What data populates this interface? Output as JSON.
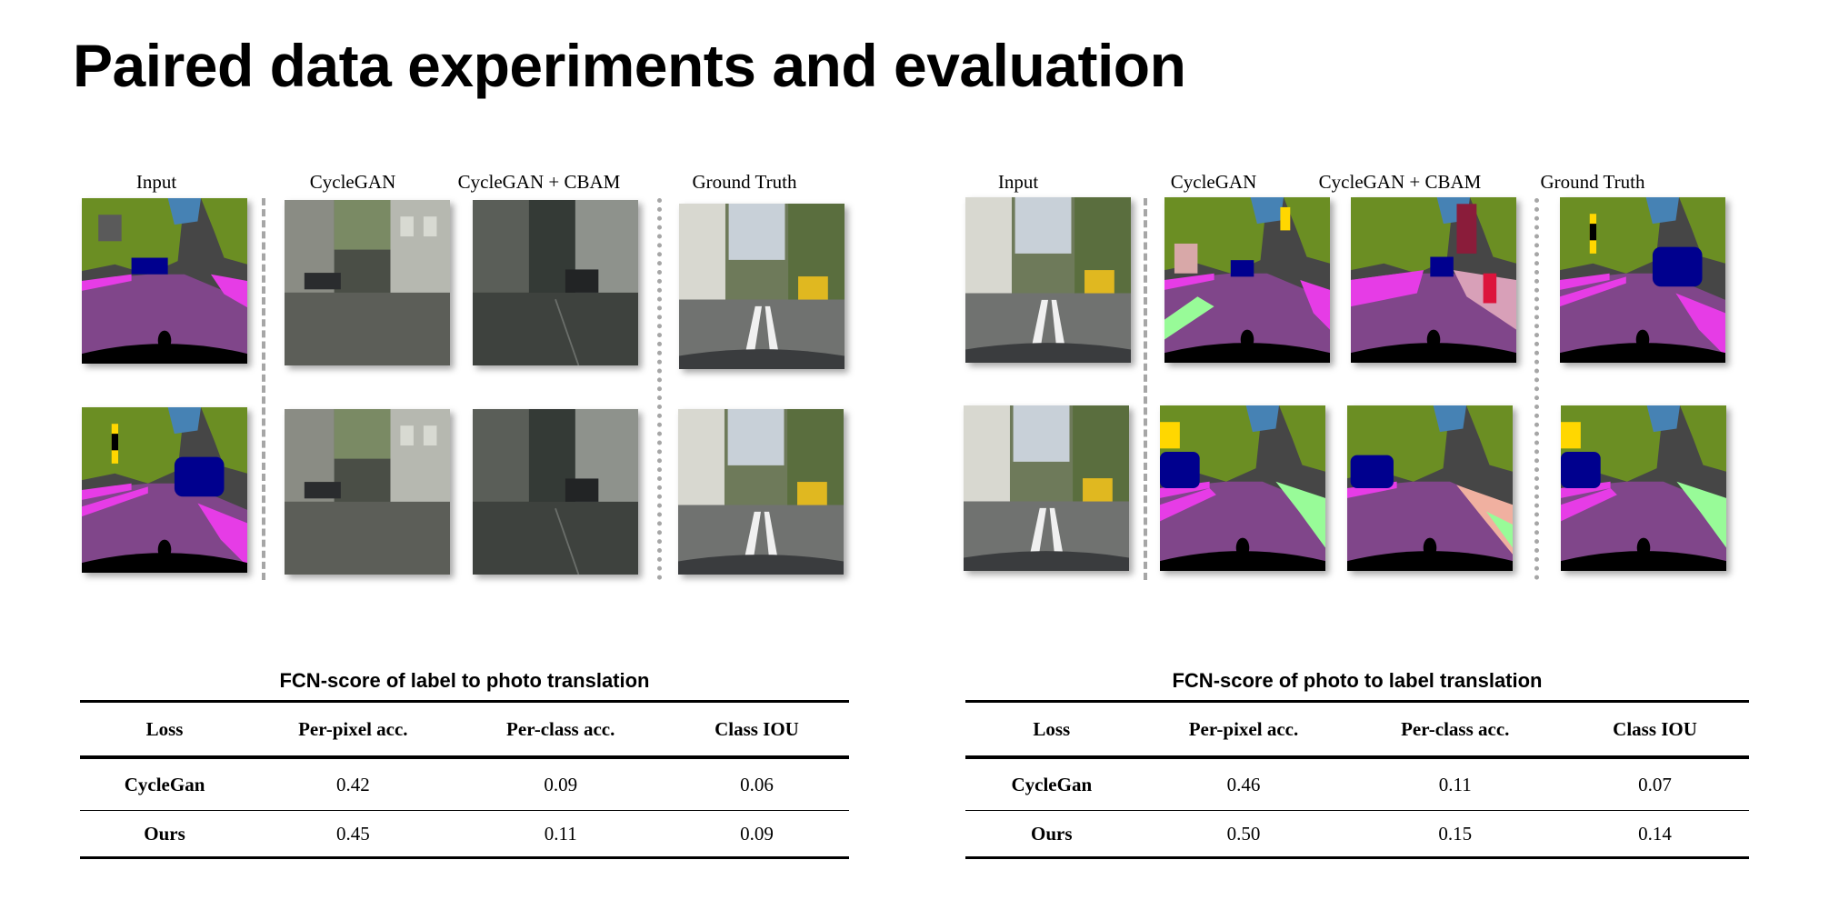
{
  "title": "Paired data experiments and evaluation",
  "label_to_photo": {
    "columns": [
      "Input",
      "CycleGAN",
      "CycleGAN + CBAM",
      "Ground Truth"
    ],
    "rows": [
      [
        "label-map",
        "photo",
        "photo",
        "photo"
      ],
      [
        "label-map",
        "photo",
        "photo",
        "photo"
      ]
    ]
  },
  "photo_to_label": {
    "columns": [
      "Input",
      "CycleGAN",
      "CycleGAN + CBAM",
      "Ground Truth"
    ],
    "rows": [
      [
        "photo",
        "label-map",
        "label-map",
        "label-map"
      ],
      [
        "photo",
        "label-map",
        "label-map",
        "label-map"
      ]
    ]
  },
  "table_left": {
    "caption": "FCN-score of label to photo translation",
    "headers": [
      "Loss",
      "Per-pixel acc.",
      "Per-class acc.",
      "Class IOU"
    ],
    "rows": [
      [
        "CycleGan",
        "0.42",
        "0.09",
        "0.06"
      ],
      [
        "Ours",
        "0.45",
        "0.11",
        "0.09"
      ]
    ]
  },
  "table_right": {
    "caption": "FCN-score of photo to label translation",
    "headers": [
      "Loss",
      "Per-pixel acc.",
      "Per-class acc.",
      "Class IOU"
    ],
    "rows": [
      [
        "CycleGan",
        "0.46",
        "0.11",
        "0.07"
      ],
      [
        "Ours",
        "0.50",
        "0.15",
        "0.14"
      ]
    ]
  },
  "colors": {
    "road": "#80468a",
    "vegetation": "#6b8e23",
    "building": "#464646",
    "sky": "#4682b4",
    "car": "#00008e",
    "sidewalk": "#e63ce6",
    "terrain": "#98fb98",
    "divider": "#a6a6a6"
  }
}
